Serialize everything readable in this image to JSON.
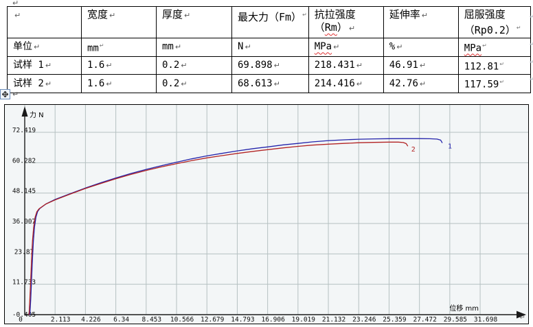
{
  "marks": {
    "pilcrow": "↵"
  },
  "table": {
    "header": {
      "c1": "宽度",
      "c2": "厚度",
      "c3": "最大力（Fm）",
      "c4_line1": "抗拉强度",
      "c4_pre": "（",
      "c4_word": "Rm",
      "c4_post": "）",
      "c5": "延伸率",
      "c6_line1": "屈服强度",
      "c6_line2": "（Rp0.2）"
    },
    "unit_row": {
      "label": "单位",
      "c1": "mm",
      "c2": "mm",
      "c3": "N",
      "c4": "MPa",
      "c5": "%",
      "c6": "MPa"
    },
    "rows": [
      {
        "label": "试样 1",
        "c1": "1.6",
        "c2": "0.2",
        "c3": "69.898",
        "c4": "218.431",
        "c5": "46.91",
        "c6": "112.81"
      },
      {
        "label": "试样 2",
        "c1": "1.6",
        "c2": "0.2",
        "c3": "68.613",
        "c4": "214.416",
        "c5": "42.76",
        "c6": "117.59"
      }
    ]
  },
  "chart_data": {
    "type": "line",
    "title": "",
    "xlabel": "位移 mm",
    "ylabel": "力 N",
    "grid": true,
    "bg": "#f3f6f7",
    "grid_color": "#b5c0c1",
    "axis_color": "#1a1a1a",
    "xlim": [
      0,
      33.6
    ],
    "ylim": [
      -0.405,
      87
    ],
    "x_ticks": [
      0,
      2.113,
      4.226,
      6.34,
      8.453,
      10.566,
      12.679,
      14.793,
      16.906,
      19.019,
      21.132,
      23.246,
      25.359,
      27.472,
      29.585,
      31.698
    ],
    "x_tick_labels": [
      "0",
      "2.113",
      "4.226",
      "6.34",
      "8.453",
      "10.566",
      "12.679",
      "14.793",
      "16.906",
      "19.019",
      "21.132",
      "23.246",
      "25.359",
      "27.472",
      "29.585",
      "31.698"
    ],
    "y_ticks": [
      -0.405,
      11.733,
      23.87,
      36.007,
      48.145,
      60.282,
      72.419
    ],
    "y_tick_labels": [
      "-0.405",
      "11.733",
      "23.87",
      "36.007",
      "48.145",
      "60.282",
      "72.419"
    ],
    "series": [
      {
        "name": "1",
        "color": "#2222aa",
        "label_at": [
          29.45,
          66.0
        ],
        "points": [
          [
            0.36,
            -0.4
          ],
          [
            0.42,
            6
          ],
          [
            0.48,
            14
          ],
          [
            0.54,
            22
          ],
          [
            0.6,
            29
          ],
          [
            0.68,
            34.5
          ],
          [
            0.78,
            38.5
          ],
          [
            0.9,
            40.8
          ],
          [
            1.05,
            42.0
          ],
          [
            1.5,
            43.9
          ],
          [
            2.11,
            45.6
          ],
          [
            3.2,
            48.0
          ],
          [
            4.23,
            50.2
          ],
          [
            5.3,
            52.3
          ],
          [
            6.34,
            54.2
          ],
          [
            7.4,
            56.0
          ],
          [
            8.45,
            57.6
          ],
          [
            9.5,
            59.1
          ],
          [
            10.57,
            60.5
          ],
          [
            11.6,
            61.8
          ],
          [
            12.68,
            63.0
          ],
          [
            13.7,
            64.0
          ],
          [
            14.79,
            65.0
          ],
          [
            15.9,
            65.9
          ],
          [
            16.91,
            66.6
          ],
          [
            18.0,
            67.4
          ],
          [
            19.02,
            68.0
          ],
          [
            20.0,
            68.6
          ],
          [
            21.13,
            69.1
          ],
          [
            22.2,
            69.4
          ],
          [
            23.25,
            69.65
          ],
          [
            24.3,
            69.8
          ],
          [
            25.36,
            69.87
          ],
          [
            26.4,
            69.9
          ],
          [
            27.47,
            69.9
          ],
          [
            28.2,
            69.85
          ],
          [
            28.7,
            69.7
          ],
          [
            28.95,
            69.3
          ],
          [
            29.05,
            68.3
          ]
        ]
      },
      {
        "name": "2",
        "color": "#b22222",
        "label_at": [
          26.9,
          64.7
        ],
        "points": [
          [
            0.3,
            -0.4
          ],
          [
            0.36,
            6
          ],
          [
            0.42,
            14
          ],
          [
            0.48,
            22
          ],
          [
            0.54,
            29
          ],
          [
            0.62,
            34.5
          ],
          [
            0.72,
            38.5
          ],
          [
            0.84,
            40.7
          ],
          [
            1.0,
            41.9
          ],
          [
            1.45,
            43.7
          ],
          [
            2.11,
            45.4
          ],
          [
            3.2,
            47.8
          ],
          [
            4.23,
            50.0
          ],
          [
            5.3,
            52.0
          ],
          [
            6.34,
            53.9
          ],
          [
            7.4,
            55.6
          ],
          [
            8.45,
            57.2
          ],
          [
            9.5,
            58.6
          ],
          [
            10.57,
            59.9
          ],
          [
            11.6,
            61.1
          ],
          [
            12.68,
            62.2
          ],
          [
            13.7,
            63.1
          ],
          [
            14.79,
            64.0
          ],
          [
            15.9,
            64.8
          ],
          [
            16.91,
            65.5
          ],
          [
            18.0,
            66.2
          ],
          [
            19.02,
            66.8
          ],
          [
            20.0,
            67.3
          ],
          [
            21.13,
            67.7
          ],
          [
            22.2,
            68.0
          ],
          [
            23.25,
            68.25
          ],
          [
            24.3,
            68.4
          ],
          [
            25.36,
            68.5
          ],
          [
            26.0,
            68.5
          ],
          [
            26.35,
            68.35
          ],
          [
            26.55,
            67.9
          ],
          [
            26.65,
            67.0
          ]
        ]
      }
    ]
  }
}
